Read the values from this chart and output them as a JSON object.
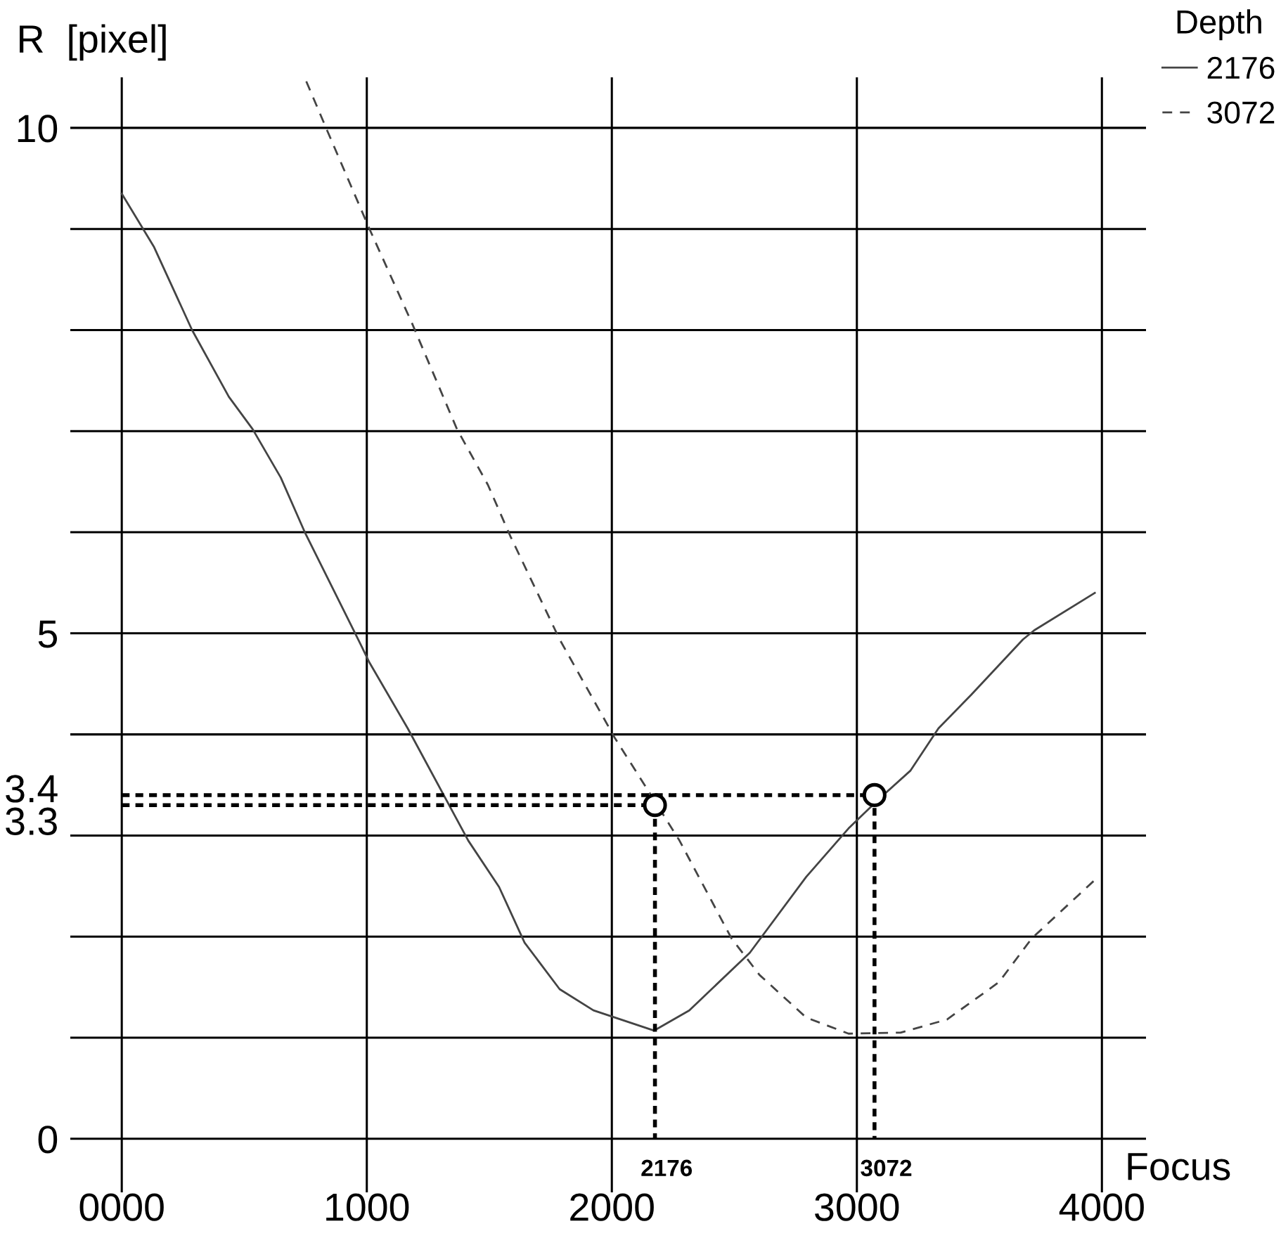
{
  "chart_data": {
    "type": "line",
    "xlabel": "Focus",
    "ylabel": "R  [pixel]",
    "legend_title": "Depth",
    "xlim": [
      -210,
      4180
    ],
    "ylim": [
      -0.53,
      10.5
    ],
    "xticks": [
      {
        "value": 0,
        "label": "0000"
      },
      1000,
      2000,
      3000,
      4000
    ],
    "yticks": [
      0,
      {
        "value": 1,
        "label": null
      },
      {
        "value": 2,
        "label": null
      },
      {
        "value": 3,
        "label": null
      },
      3.3,
      3.4,
      {
        "value": 4,
        "label": null
      },
      5,
      {
        "value": 6,
        "label": null
      },
      {
        "value": 7,
        "label": null
      },
      {
        "value": 8,
        "label": null
      },
      {
        "value": 9,
        "label": null
      },
      10
    ],
    "grid": true,
    "legend": "top right",
    "series": [
      {
        "name": "2176",
        "color": "#444444",
        "line_style": "solid",
        "x": [
          0,
          132,
          287,
          437,
          534,
          649,
          747,
          977,
          1011,
          1167,
          1414,
          1540,
          1644,
          1787,
          1925,
          2172,
          2316,
          2563,
          2793,
          2966,
          3103,
          3218,
          3333,
          3466,
          3678,
          3724,
          3971
        ],
        "values": [
          9.35,
          8.82,
          8.0,
          7.34,
          7.02,
          6.54,
          6.0,
          4.88,
          4.71,
          4.06,
          2.95,
          2.49,
          1.94,
          1.48,
          1.27,
          1.07,
          1.27,
          1.84,
          2.59,
          3.07,
          3.39,
          3.64,
          4.06,
          4.39,
          4.94,
          5.03,
          5.4
        ]
      },
      {
        "name": "3072",
        "color": "#444444",
        "line_style": "dashed",
        "x": [
          753,
          839,
          1011,
          1184,
          1368,
          1494,
          1586,
          1787,
          2011,
          2144,
          2276,
          2489,
          2603,
          2793,
          2966,
          3178,
          3368,
          3580,
          3713,
          3971
        ],
        "values": [
          10.46,
          9.97,
          9.0,
          8.07,
          7.02,
          6.47,
          5.96,
          4.94,
          3.97,
          3.46,
          2.95,
          1.98,
          1.62,
          1.2,
          1.04,
          1.05,
          1.18,
          1.55,
          1.98,
          2.56
        ]
      },
      {
        "type": "line",
        "color": "#000000",
        "line_style": "dotted",
        "x": [
          0,
          2176,
          2176
        ],
        "values": [
          3.3,
          3.3,
          0
        ]
      },
      {
        "type": "line",
        "color": "#000000",
        "line_style": "dotted",
        "x": [
          0,
          3072,
          3072
        ],
        "values": [
          3.4,
          3.4,
          0
        ]
      },
      {
        "type": "scatter",
        "color": "#000000",
        "marker": "circle",
        "x": [
          2176,
          3072
        ],
        "values": [
          3.3,
          3.4
        ]
      }
    ],
    "annotations": [
      {
        "text": "2176",
        "x": 2176,
        "y": 0
      },
      {
        "text": "3072",
        "x": 3072,
        "y": 0
      }
    ]
  }
}
